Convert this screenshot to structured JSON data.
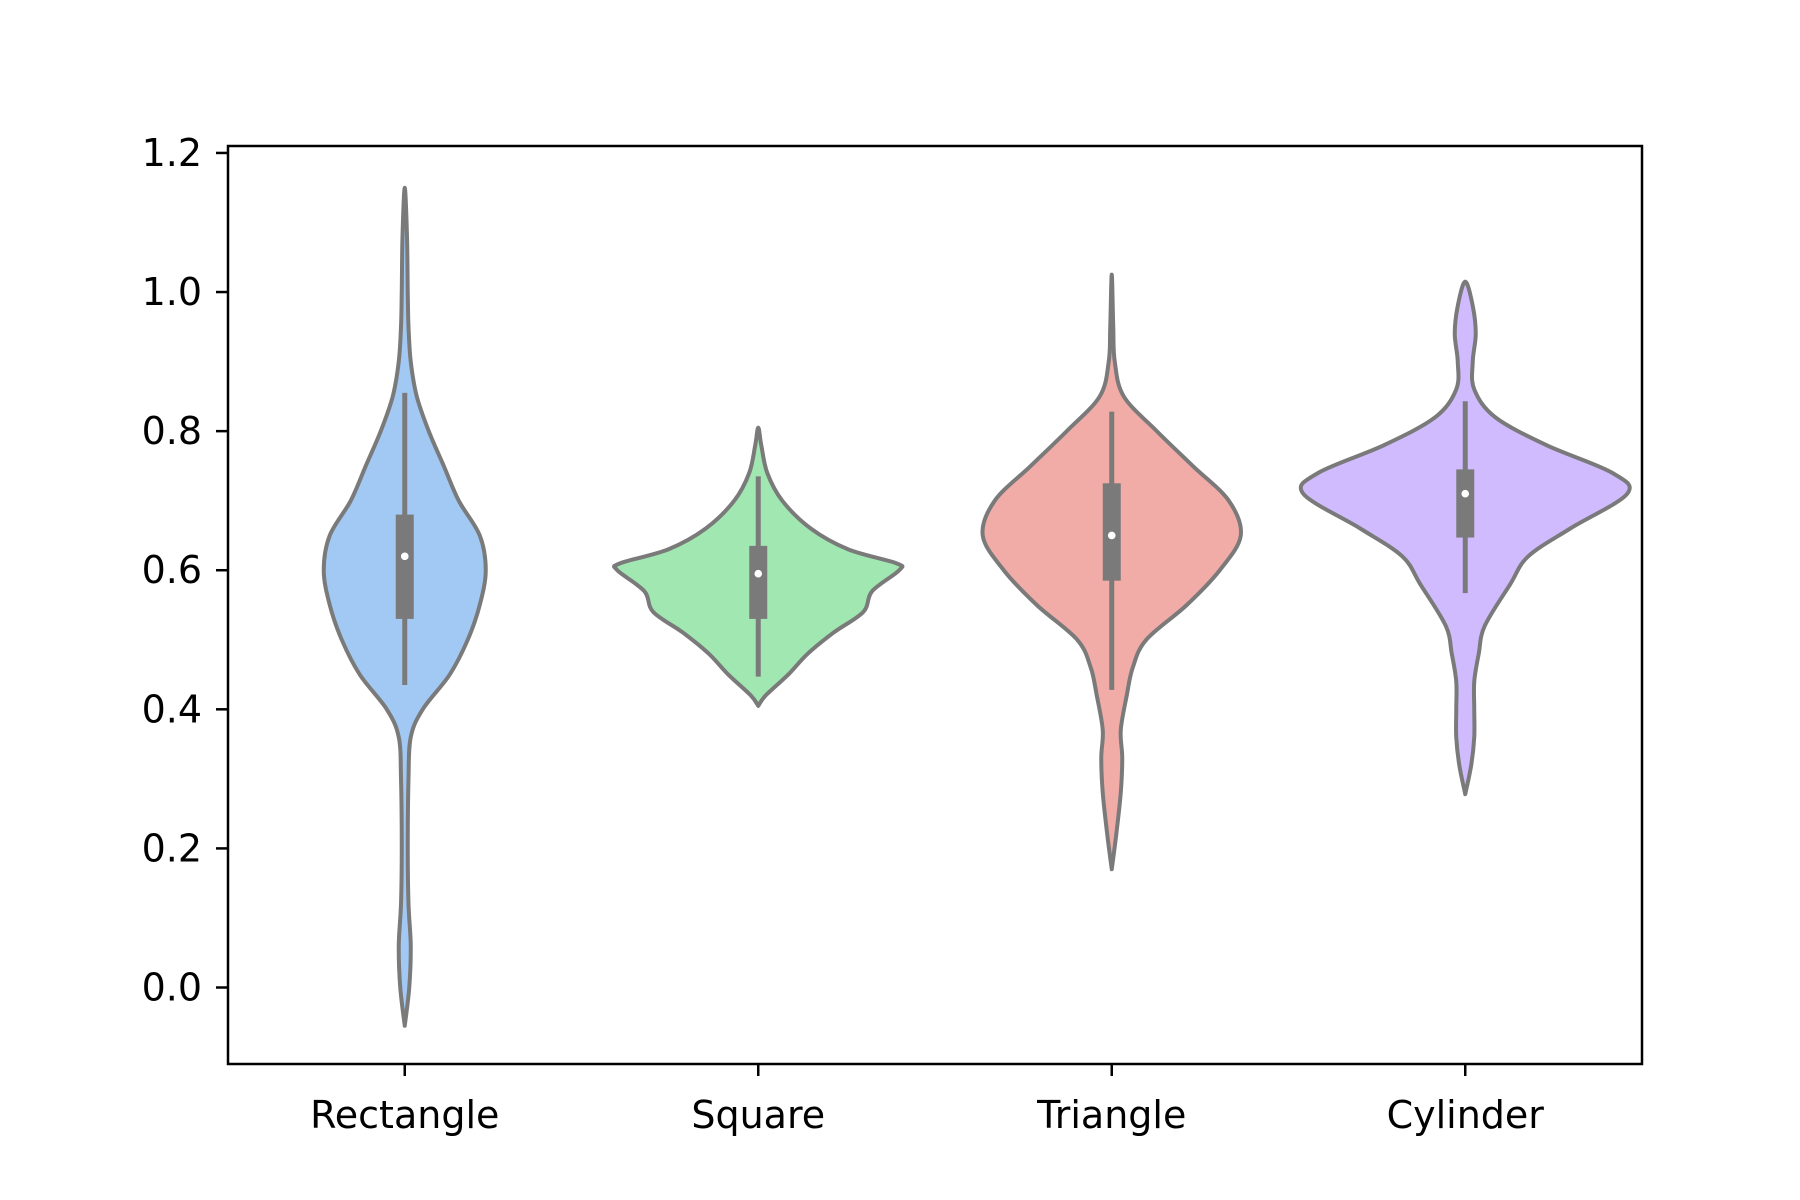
{
  "chart_data": {
    "type": "violin",
    "title": "",
    "xlabel": "",
    "ylabel": "",
    "categories": [
      "Rectangle",
      "Square",
      "Triangle",
      "Cylinder"
    ],
    "ylim": [
      -0.11,
      1.21
    ],
    "yticks": [
      0.0,
      0.2,
      0.4,
      0.6,
      0.8,
      1.0,
      1.2
    ],
    "ytick_labels": [
      "0.0",
      "0.2",
      "0.4",
      "0.6",
      "0.8",
      "1.0",
      "1.2"
    ],
    "grid": false,
    "colors": {
      "violin_edge": "#7a7a7a",
      "box": "#7a7a7a",
      "median_dot": "#ffffff"
    },
    "series": [
      {
        "category": "Rectangle",
        "fill": "#a1c9f4",
        "min": -0.055,
        "max": 1.15,
        "q1": 0.53,
        "median": 0.62,
        "q3": 0.68,
        "whisker_low": 0.435,
        "whisker_high": 0.855,
        "density_profile": [
          [
            -0.055,
            0.0
          ],
          [
            0.0,
            0.03
          ],
          [
            0.06,
            0.04
          ],
          [
            0.12,
            0.025
          ],
          [
            0.2,
            0.02
          ],
          [
            0.3,
            0.025
          ],
          [
            0.36,
            0.04
          ],
          [
            0.4,
            0.12
          ],
          [
            0.45,
            0.3
          ],
          [
            0.5,
            0.42
          ],
          [
            0.55,
            0.5
          ],
          [
            0.6,
            0.54
          ],
          [
            0.65,
            0.5
          ],
          [
            0.7,
            0.36
          ],
          [
            0.75,
            0.26
          ],
          [
            0.8,
            0.16
          ],
          [
            0.85,
            0.08
          ],
          [
            0.9,
            0.04
          ],
          [
            0.95,
            0.025
          ],
          [
            1.0,
            0.02
          ],
          [
            1.08,
            0.015
          ],
          [
            1.15,
            0.0
          ]
        ]
      },
      {
        "category": "Square",
        "fill": "#a1e7b1",
        "min": 0.405,
        "max": 0.805,
        "q1": 0.53,
        "median": 0.595,
        "q3": 0.635,
        "whisker_low": 0.447,
        "whisker_high": 0.735,
        "density_profile": [
          [
            0.405,
            0.0
          ],
          [
            0.42,
            0.05
          ],
          [
            0.45,
            0.2
          ],
          [
            0.48,
            0.33
          ],
          [
            0.51,
            0.5
          ],
          [
            0.54,
            0.7
          ],
          [
            0.57,
            0.76
          ],
          [
            0.6,
            0.94
          ],
          [
            0.61,
            0.92
          ],
          [
            0.63,
            0.6
          ],
          [
            0.66,
            0.35
          ],
          [
            0.7,
            0.16
          ],
          [
            0.74,
            0.06
          ],
          [
            0.78,
            0.02
          ],
          [
            0.805,
            0.0
          ]
        ]
      },
      {
        "category": "Triangle",
        "fill": "#f1aca8",
        "min": 0.17,
        "max": 1.025,
        "q1": 0.585,
        "median": 0.65,
        "q3": 0.725,
        "whisker_low": 0.428,
        "whisker_high": 0.828,
        "density_profile": [
          [
            0.17,
            0.0
          ],
          [
            0.22,
            0.03
          ],
          [
            0.28,
            0.06
          ],
          [
            0.33,
            0.07
          ],
          [
            0.37,
            0.06
          ],
          [
            0.42,
            0.1
          ],
          [
            0.46,
            0.14
          ],
          [
            0.5,
            0.23
          ],
          [
            0.55,
            0.5
          ],
          [
            0.6,
            0.72
          ],
          [
            0.65,
            0.86
          ],
          [
            0.7,
            0.78
          ],
          [
            0.75,
            0.54
          ],
          [
            0.8,
            0.3
          ],
          [
            0.85,
            0.08
          ],
          [
            0.9,
            0.02
          ],
          [
            0.95,
            0.01
          ],
          [
            1.025,
            0.0
          ]
        ]
      },
      {
        "category": "Cylinder",
        "fill": "#d0bbff",
        "min": 0.278,
        "max": 1.015,
        "q1": 0.647,
        "median": 0.71,
        "q3": 0.745,
        "whisker_low": 0.567,
        "whisker_high": 0.843,
        "density_profile": [
          [
            0.278,
            0.0
          ],
          [
            0.32,
            0.04
          ],
          [
            0.36,
            0.06
          ],
          [
            0.4,
            0.06
          ],
          [
            0.44,
            0.06
          ],
          [
            0.48,
            0.09
          ],
          [
            0.52,
            0.13
          ],
          [
            0.58,
            0.3
          ],
          [
            0.62,
            0.42
          ],
          [
            0.66,
            0.7
          ],
          [
            0.71,
            1.08
          ],
          [
            0.74,
            0.98
          ],
          [
            0.78,
            0.54
          ],
          [
            0.82,
            0.2
          ],
          [
            0.86,
            0.06
          ],
          [
            0.9,
            0.05
          ],
          [
            0.94,
            0.07
          ],
          [
            0.98,
            0.05
          ],
          [
            1.015,
            0.0
          ]
        ]
      }
    ]
  }
}
